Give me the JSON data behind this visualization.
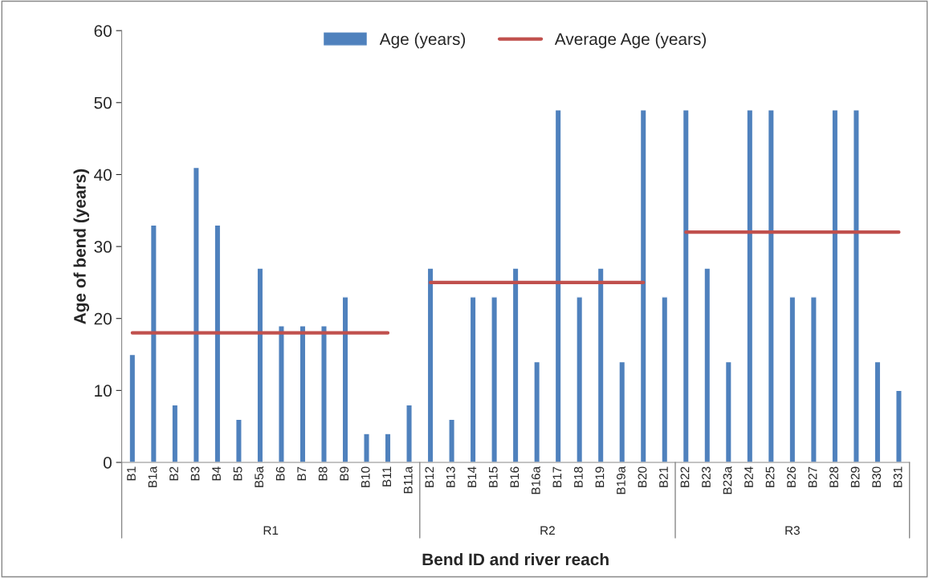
{
  "chart_data": {
    "type": "bar",
    "xlabel": "Bend ID and river reach",
    "ylabel": "Age of bend (years)",
    "categories": [
      "B1",
      "B1a",
      "B2",
      "B3",
      "B4",
      "B5",
      "B5a",
      "B6",
      "B7",
      "B8",
      "B9",
      "B10",
      "B11",
      "B11a",
      "B12",
      "B13",
      "B14",
      "B15",
      "B16",
      "B16a",
      "B17",
      "B18",
      "B19",
      "B19a",
      "B20",
      "B21",
      "B22",
      "B23",
      "B23a",
      "B24",
      "B25",
      "B26",
      "B27",
      "B28",
      "B29",
      "B30",
      "B31"
    ],
    "series": [
      {
        "name": "Age (years)",
        "color": "#4f81bd",
        "values": [
          15,
          33,
          8,
          41,
          33,
          6,
          27,
          19,
          19,
          19,
          23,
          4,
          4,
          8,
          27,
          6,
          23,
          23,
          27,
          14,
          49,
          23,
          27,
          14,
          49,
          23,
          49,
          27,
          14,
          49,
          49,
          23,
          23,
          49,
          49,
          14,
          10
        ]
      },
      {
        "name": "Average Age (years)",
        "type": "line",
        "color": "#c0504d",
        "values": [
          18,
          18,
          18,
          18,
          18,
          18,
          18,
          18,
          18,
          18,
          18,
          18,
          18,
          null,
          25,
          25,
          25,
          25,
          25,
          25,
          25,
          25,
          25,
          25,
          25,
          null,
          32,
          32,
          32,
          32,
          32,
          32,
          32,
          32,
          32,
          32,
          32
        ]
      }
    ],
    "annotations": [
      "R1",
      "R2",
      "R3"
    ],
    "ylim": [
      0,
      60
    ],
    "yticks": [
      0,
      10,
      20,
      30,
      40,
      50,
      60
    ],
    "grid": false,
    "legend": "top",
    "marker": "none",
    "line_style": "solid"
  }
}
